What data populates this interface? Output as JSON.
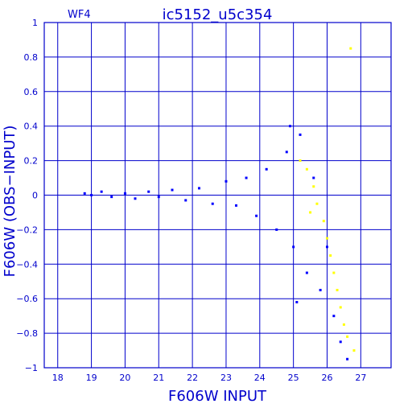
{
  "chart_data": {
    "type": "scatter",
    "panel_label": "WF4",
    "title": "ic5152_u5c354",
    "xlabel": "F606W INPUT",
    "ylabel": "F606W (OBS−INPUT)",
    "xlim": [
      17.6,
      27.9
    ],
    "ylim": [
      -1,
      1
    ],
    "x_ticks": [
      18,
      19,
      20,
      21,
      22,
      23,
      24,
      25,
      26,
      27
    ],
    "y_ticks": [
      1,
      0.8,
      0.6,
      0.4,
      0.2,
      0,
      -0.2,
      -0.4,
      -0.6,
      -0.8,
      -1
    ],
    "x_tick_labels": [
      "18",
      "19",
      "20",
      "21",
      "22",
      "23",
      "24",
      "25",
      "26",
      "27"
    ],
    "y_tick_labels": [
      "1",
      "0.8",
      "0.6",
      "0.4",
      "0.2",
      "0",
      "−0.2",
      "−0.4",
      "−0.6",
      "−0.8",
      "−1"
    ],
    "grid": true,
    "colors": {
      "frame": "#0000cc",
      "primary": "#0000ff",
      "secondary": "#ffff00"
    },
    "series": [
      {
        "color": "#0000ff",
        "points": [
          [
            18.8,
            0.01
          ],
          [
            19.0,
            0.0
          ],
          [
            19.3,
            0.02
          ],
          [
            19.6,
            -0.01
          ],
          [
            20.0,
            0.01
          ],
          [
            20.3,
            -0.02
          ],
          [
            20.7,
            0.02
          ],
          [
            21.0,
            -0.01
          ],
          [
            21.4,
            0.03
          ],
          [
            21.8,
            -0.03
          ],
          [
            22.2,
            0.04
          ],
          [
            22.6,
            -0.05
          ],
          [
            23.0,
            0.08
          ],
          [
            23.3,
            -0.06
          ],
          [
            23.6,
            0.1
          ],
          [
            23.9,
            -0.12
          ],
          [
            24.2,
            0.15
          ],
          [
            24.5,
            -0.2
          ],
          [
            24.8,
            0.25
          ],
          [
            25.0,
            -0.3
          ],
          [
            25.2,
            0.35
          ],
          [
            25.4,
            -0.45
          ],
          [
            25.6,
            0.1
          ],
          [
            25.8,
            -0.55
          ],
          [
            26.0,
            -0.3
          ],
          [
            26.2,
            -0.7
          ],
          [
            26.4,
            -0.85
          ],
          [
            26.6,
            -0.95
          ],
          [
            25.1,
            -0.62
          ],
          [
            24.9,
            0.4
          ]
        ]
      },
      {
        "color": "#ffff00",
        "points": [
          [
            25.4,
            0.15
          ],
          [
            25.6,
            0.05
          ],
          [
            25.7,
            -0.05
          ],
          [
            25.9,
            -0.15
          ],
          [
            26.0,
            -0.25
          ],
          [
            26.1,
            -0.35
          ],
          [
            26.2,
            -0.45
          ],
          [
            26.3,
            -0.55
          ],
          [
            26.4,
            -0.65
          ],
          [
            26.5,
            -0.75
          ],
          [
            26.6,
            -0.82
          ],
          [
            26.8,
            -0.9
          ],
          [
            25.2,
            0.2
          ],
          [
            25.5,
            -0.1
          ],
          [
            26.7,
            0.85
          ]
        ]
      }
    ]
  }
}
